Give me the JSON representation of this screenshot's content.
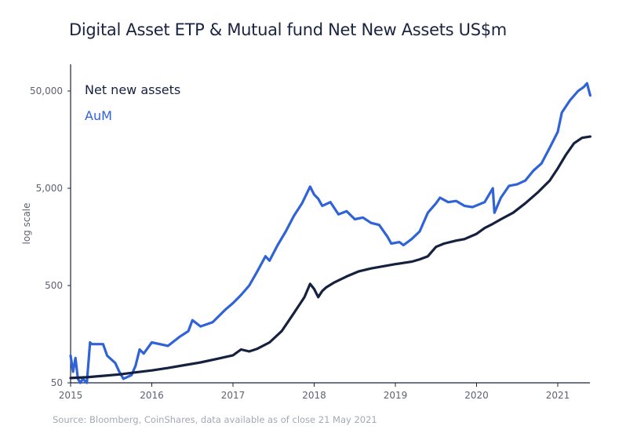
{
  "title": "Digital Asset ETP & Mutual fund Net New Assets US$m",
  "source": "Source: Bloomberg, CoinShares, data available as of close 21 May 2021",
  "colors": {
    "net_new_assets": "#15213f",
    "aum": "#2f63d6",
    "axis": "#1a2440",
    "tick_text": "#5c6270",
    "source_text": "#a3a8b2"
  },
  "chart_data": {
    "type": "line",
    "title": "Digital Asset ETP & Mutual fund Net New Assets US$m",
    "xlabel": "",
    "ylabel": "log scale",
    "yscale": "log",
    "ylim": [
      50,
      100000
    ],
    "xlim": [
      2015.0,
      2021.4
    ],
    "grid": false,
    "legend_position": "top-left",
    "x_ticks": [
      2015,
      2016,
      2017,
      2018,
      2019,
      2020,
      2021
    ],
    "x_tick_labels": [
      "2015",
      "2016",
      "2017",
      "2018",
      "2019",
      "2020",
      "2021"
    ],
    "y_ticks": [
      50,
      500,
      5000,
      50000
    ],
    "y_tick_labels": [
      "50",
      "500",
      "5,000",
      "50,000"
    ],
    "series": [
      {
        "name": "Net new assets",
        "color": "#15213f",
        "x": [
          2015.0,
          2015.2,
          2015.4,
          2015.6,
          2015.8,
          2016.0,
          2016.2,
          2016.4,
          2016.6,
          2016.8,
          2017.0,
          2017.1,
          2017.2,
          2017.3,
          2017.45,
          2017.6,
          2017.75,
          2017.88,
          2017.95,
          2018.0,
          2018.05,
          2018.1,
          2018.15,
          2018.25,
          2018.4,
          2018.55,
          2018.7,
          2018.85,
          2019.0,
          2019.2,
          2019.3,
          2019.4,
          2019.5,
          2019.6,
          2019.75,
          2019.85,
          2020.0,
          2020.1,
          2020.2,
          2020.3,
          2020.45,
          2020.6,
          2020.75,
          2020.9,
          2021.0,
          2021.1,
          2021.2,
          2021.3,
          2021.4
        ],
        "values": [
          56,
          57,
          59,
          61,
          64,
          67,
          71,
          76,
          81,
          88,
          96,
          110,
          105,
          112,
          130,
          170,
          260,
          380,
          520,
          460,
          380,
          440,
          480,
          540,
          620,
          700,
          750,
          790,
          830,
          880,
          930,
          1000,
          1250,
          1350,
          1450,
          1500,
          1700,
          1950,
          2150,
          2400,
          2800,
          3500,
          4500,
          6000,
          8000,
          11000,
          14500,
          16500,
          17000
        ]
      },
      {
        "name": "AuM",
        "color": "#2f63d6",
        "x": [
          2015.0,
          2015.03,
          2015.06,
          2015.09,
          2015.12,
          2015.15,
          2015.2,
          2015.24,
          2015.26,
          2015.4,
          2015.45,
          2015.55,
          2015.6,
          2015.65,
          2015.75,
          2015.8,
          2015.85,
          2015.9,
          2016.0,
          2016.2,
          2016.35,
          2016.45,
          2016.5,
          2016.6,
          2016.75,
          2016.9,
          2017.0,
          2017.1,
          2017.2,
          2017.3,
          2017.4,
          2017.45,
          2017.55,
          2017.65,
          2017.75,
          2017.85,
          2017.95,
          2018.0,
          2018.05,
          2018.1,
          2018.2,
          2018.3,
          2018.4,
          2018.5,
          2018.6,
          2018.7,
          2018.8,
          2018.9,
          2018.95,
          2019.05,
          2019.1,
          2019.2,
          2019.3,
          2019.4,
          2019.5,
          2019.55,
          2019.65,
          2019.75,
          2019.85,
          2019.95,
          2020.1,
          2020.2,
          2020.22,
          2020.3,
          2020.4,
          2020.5,
          2020.6,
          2020.7,
          2020.8,
          2020.9,
          2021.0,
          2021.05,
          2021.15,
          2021.25,
          2021.32,
          2021.36,
          2021.4
        ],
        "values": [
          95,
          65,
          90,
          55,
          50,
          55,
          50,
          130,
          125,
          125,
          95,
          80,
          65,
          55,
          60,
          75,
          110,
          100,
          130,
          120,
          150,
          170,
          220,
          190,
          210,
          280,
          330,
          400,
          500,
          700,
          1000,
          900,
          1300,
          1800,
          2600,
          3500,
          5200,
          4300,
          3900,
          3300,
          3600,
          2700,
          2900,
          2400,
          2500,
          2200,
          2100,
          1600,
          1350,
          1400,
          1300,
          1500,
          1800,
          2800,
          3500,
          4000,
          3600,
          3700,
          3300,
          3200,
          3600,
          5000,
          2800,
          4000,
          5300,
          5500,
          6000,
          7600,
          9000,
          13000,
          19000,
          30000,
          40000,
          50000,
          55000,
          60000,
          45000
        ]
      }
    ]
  }
}
